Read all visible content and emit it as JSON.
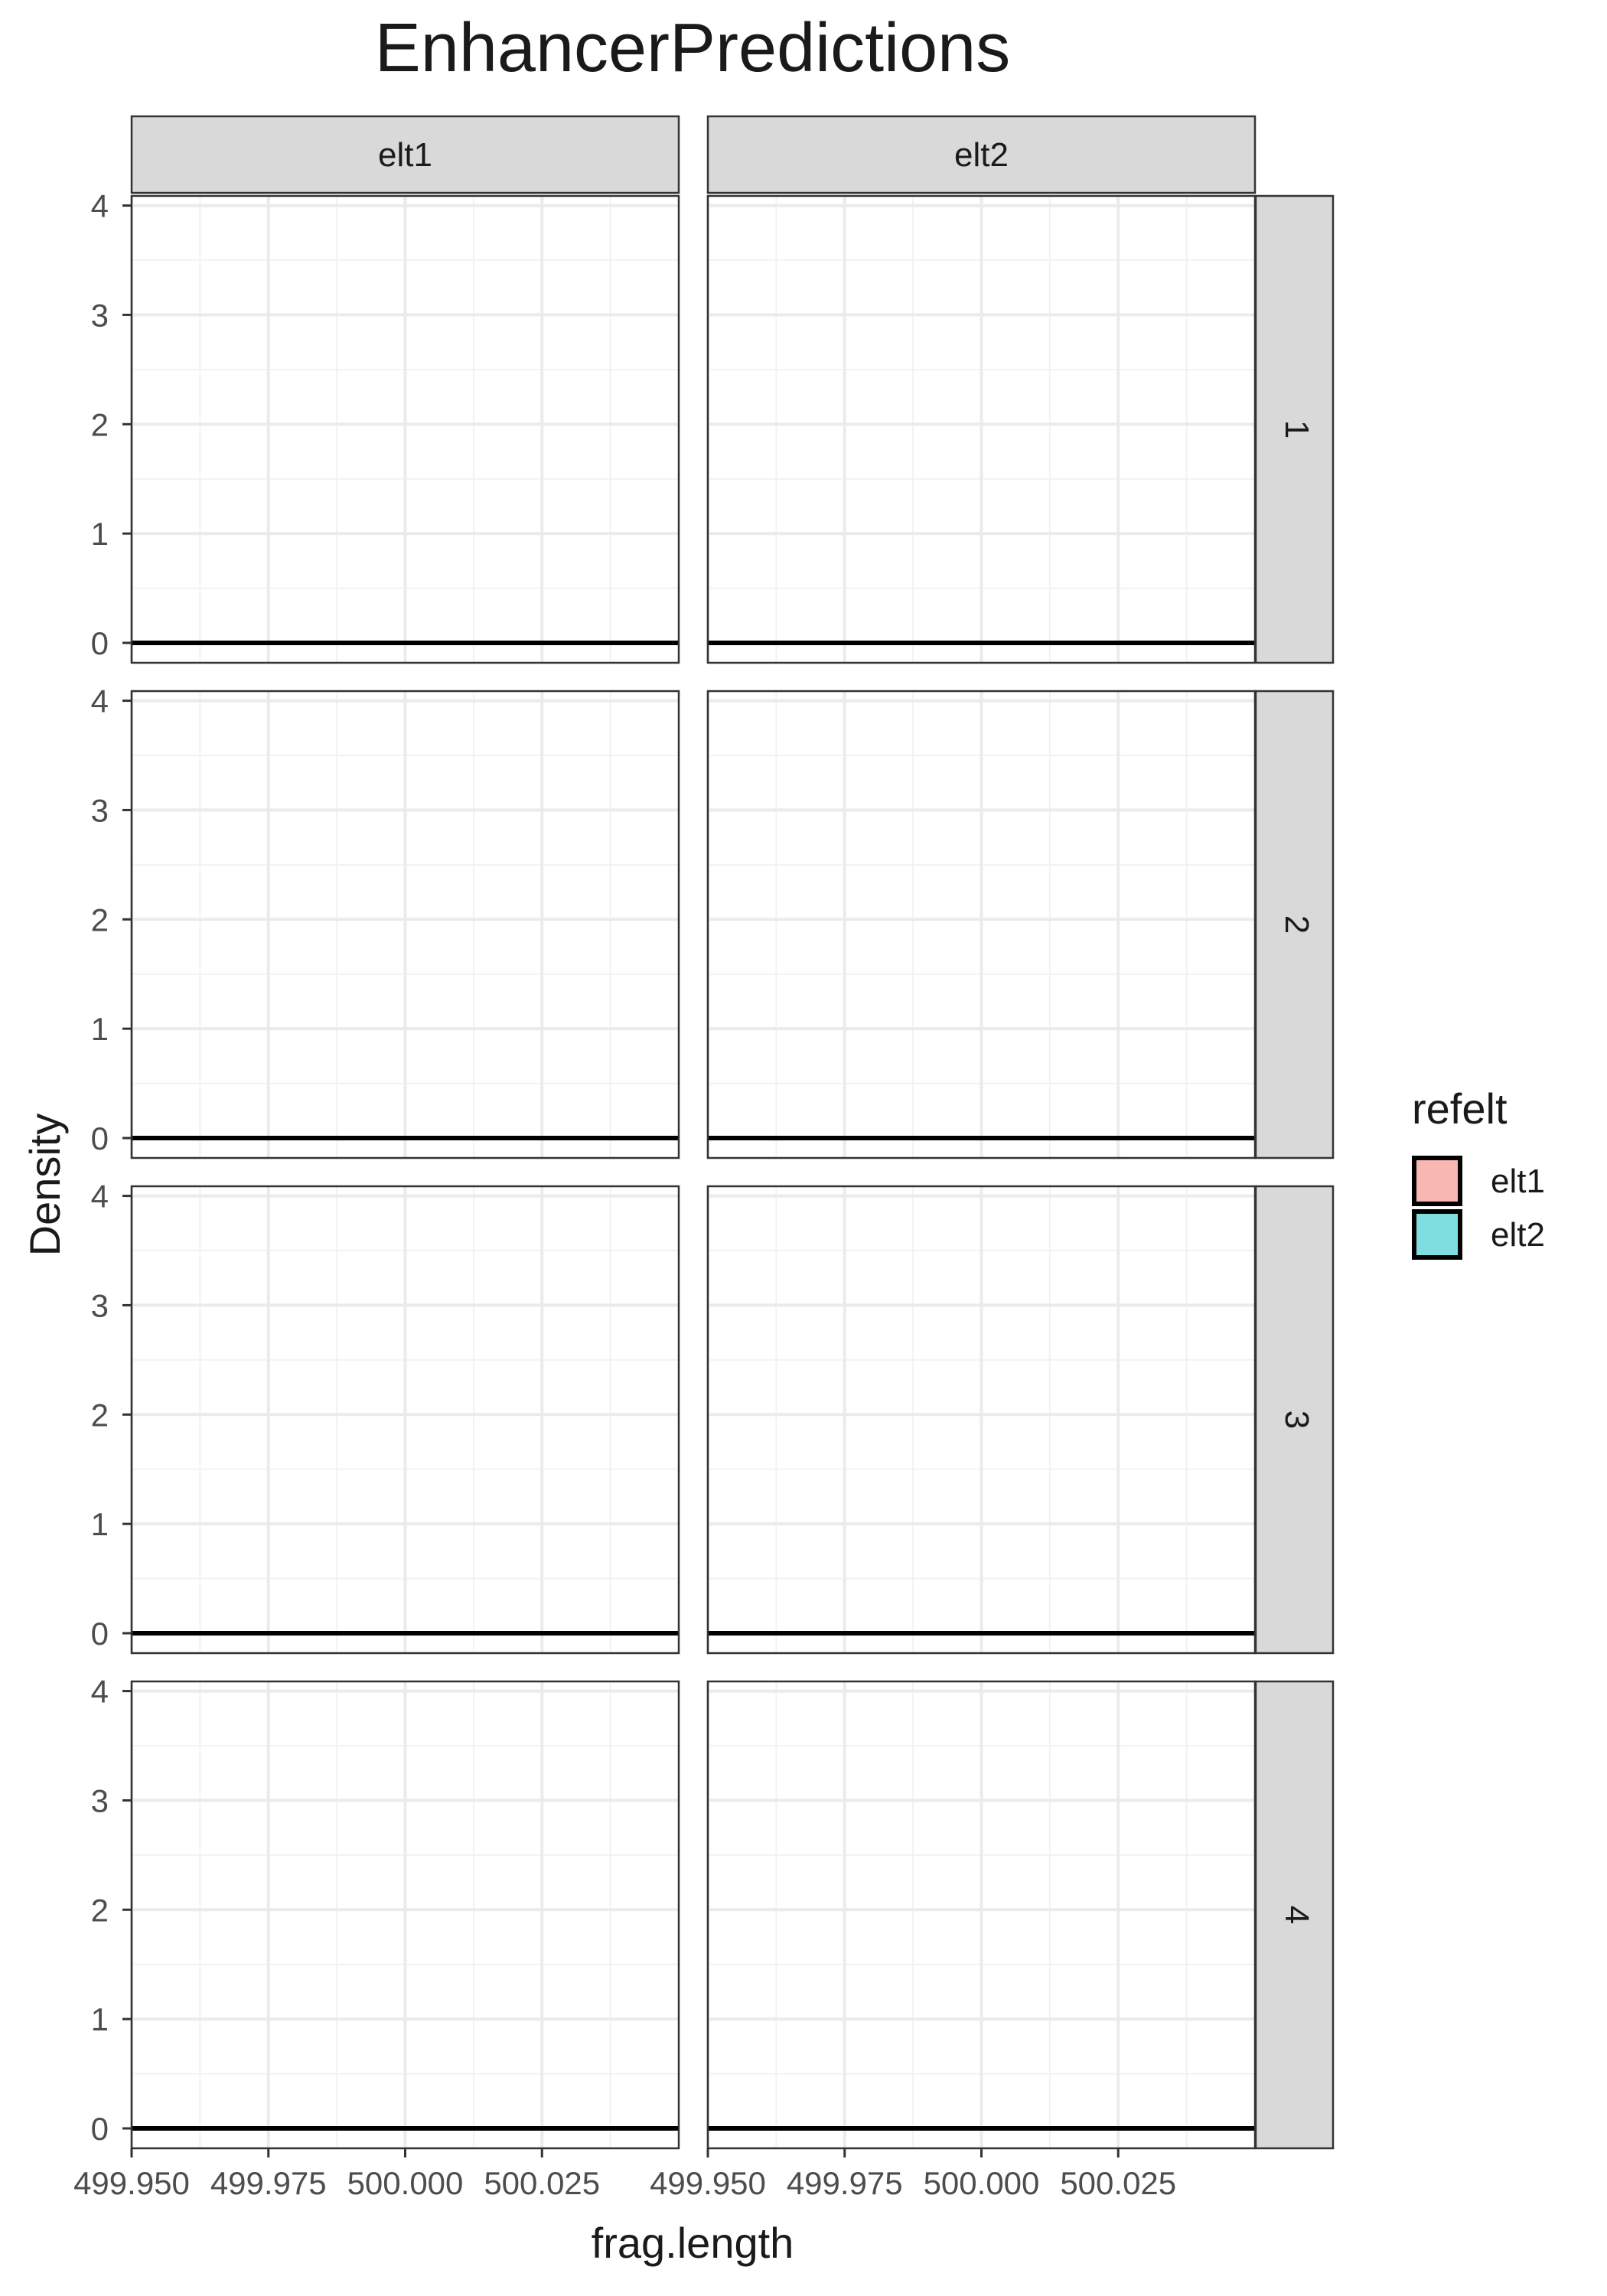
{
  "chart_data": {
    "type": "area",
    "title": "EnhancerPredictions",
    "xlabel": "frag.length",
    "ylabel": "Density",
    "xlim": [
      499.95,
      500.05
    ],
    "ylim": [
      0,
      4.27
    ],
    "x_ticks": [
      499.95,
      499.975,
      500.0,
      500.025
    ],
    "x_tick_labels": [
      "499.950",
      "499.975",
      "500.000",
      "500.025"
    ],
    "y_ticks": [
      0,
      1,
      2,
      3,
      4
    ],
    "y_tick_labels": [
      "0",
      "1",
      "2",
      "3",
      "4"
    ],
    "grid": true,
    "facet_columns": [
      "elt1",
      "elt2"
    ],
    "facet_rows": [
      "1",
      "2",
      "3",
      "4"
    ],
    "legend": {
      "title": "refelt",
      "position": "right",
      "entries": [
        {
          "label": "elt1",
          "color": "#F8B7B3"
        },
        {
          "label": "elt2",
          "color": "#7FDEDF"
        }
      ]
    },
    "series": [
      {
        "column": "elt1",
        "row": "1",
        "x": [
          499.95,
          500.05
        ],
        "y": [
          0,
          0
        ]
      },
      {
        "column": "elt2",
        "row": "1",
        "x": [
          499.95,
          500.05
        ],
        "y": [
          0,
          0
        ]
      },
      {
        "column": "elt1",
        "row": "2",
        "x": [
          499.95,
          500.05
        ],
        "y": [
          0,
          0
        ]
      },
      {
        "column": "elt2",
        "row": "2",
        "x": [
          499.95,
          500.05
        ],
        "y": [
          0,
          0
        ]
      },
      {
        "column": "elt1",
        "row": "3",
        "x": [
          499.95,
          500.05
        ],
        "y": [
          0,
          0
        ]
      },
      {
        "column": "elt2",
        "row": "3",
        "x": [
          499.95,
          500.05
        ],
        "y": [
          0,
          0
        ]
      },
      {
        "column": "elt1",
        "row": "4",
        "x": [
          499.95,
          500.05
        ],
        "y": [
          0,
          0
        ]
      },
      {
        "column": "elt2",
        "row": "4",
        "x": [
          499.95,
          500.05
        ],
        "y": [
          0,
          0
        ]
      }
    ]
  }
}
